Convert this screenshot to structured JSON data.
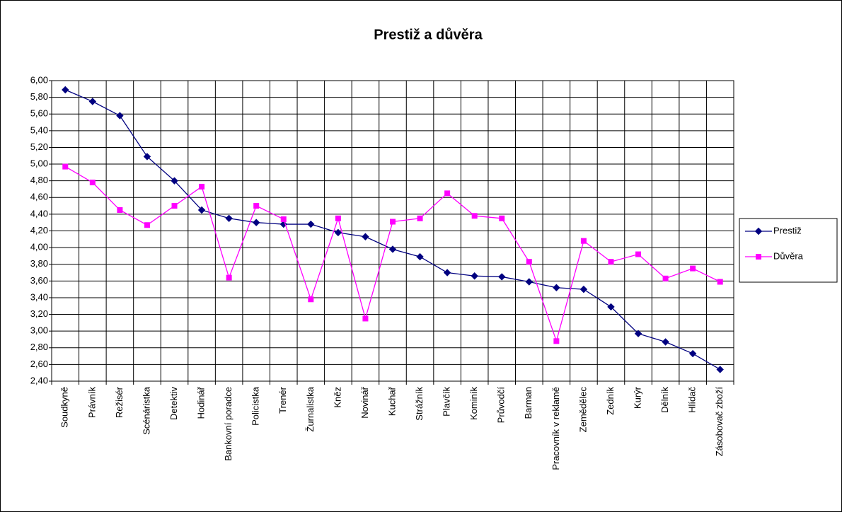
{
  "chart_data": {
    "type": "line",
    "title": "Prestiž a důvěra",
    "categories": [
      "Soudkyně",
      "Právník",
      "Režisér",
      "Scénáristka",
      "Detektiv",
      "Hodinář",
      "Bankovní poradce",
      "Policistka",
      "Trenér",
      "Žurnalistka",
      "Kněz",
      "Novinář",
      "Kuchař",
      "Strážník",
      "Plavčík",
      "Kominík",
      "Průvodčí",
      "Barman",
      "Pracovník v reklamě",
      "Zemědělec",
      "Zedník",
      "Kurýr",
      "Dělník",
      "Hlídač",
      "Zásobovač zboží"
    ],
    "series": [
      {
        "name": "Prestiž",
        "color": "#000080",
        "marker": "diamond",
        "values": [
          5.89,
          5.75,
          5.58,
          5.09,
          4.8,
          4.45,
          4.35,
          4.3,
          4.28,
          4.28,
          4.18,
          4.13,
          3.98,
          3.89,
          3.7,
          3.66,
          3.65,
          3.59,
          3.52,
          3.5,
          3.29,
          2.97,
          2.87,
          2.73,
          2.54
        ]
      },
      {
        "name": "Důvěra",
        "color": "#ff00ff",
        "marker": "square",
        "values": [
          4.97,
          4.78,
          4.45,
          4.27,
          4.5,
          4.73,
          3.64,
          4.5,
          4.34,
          3.38,
          4.35,
          3.15,
          4.31,
          4.35,
          4.65,
          4.38,
          4.35,
          3.83,
          2.88,
          4.08,
          3.83,
          3.92,
          3.63,
          3.75,
          3.59
        ]
      }
    ],
    "ylim": [
      2.4,
      6.0
    ],
    "yticks": [
      {
        "value": 2.4,
        "label": "2,40"
      },
      {
        "value": 2.6,
        "label": "2,60"
      },
      {
        "value": 2.8,
        "label": "2,80"
      },
      {
        "value": 3.0,
        "label": "3,00"
      },
      {
        "value": 3.2,
        "label": "3,20"
      },
      {
        "value": 3.4,
        "label": "3,40"
      },
      {
        "value": 3.6,
        "label": "3,60"
      },
      {
        "value": 3.8,
        "label": "3,80"
      },
      {
        "value": 4.0,
        "label": "4,00"
      },
      {
        "value": 4.2,
        "label": "4,20"
      },
      {
        "value": 4.4,
        "label": "4,40"
      },
      {
        "value": 4.6,
        "label": "4,60"
      },
      {
        "value": 4.8,
        "label": "4,80"
      },
      {
        "value": 5.0,
        "label": "5,00"
      },
      {
        "value": 5.2,
        "label": "5,20"
      },
      {
        "value": 5.4,
        "label": "5,40"
      },
      {
        "value": 5.6,
        "label": "5,60"
      },
      {
        "value": 5.8,
        "label": "5,80"
      },
      {
        "value": 6.0,
        "label": "6,00"
      }
    ],
    "grid": true,
    "legend": "right"
  }
}
